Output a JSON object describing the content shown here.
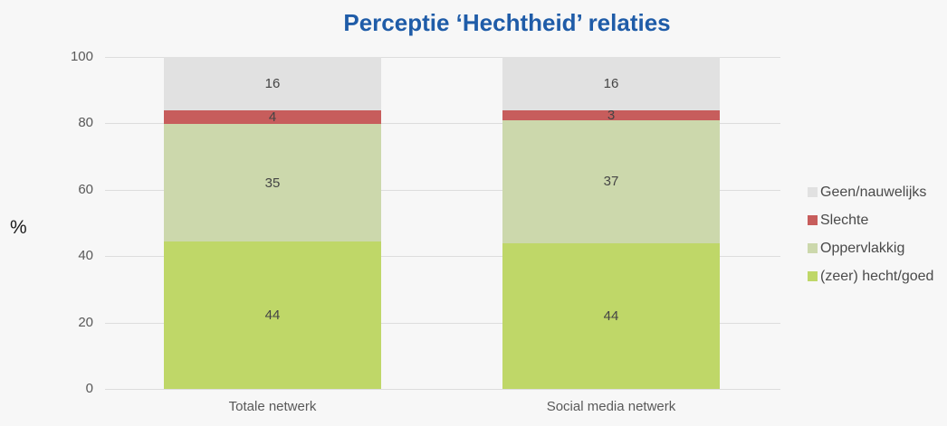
{
  "title": "Perceptie ‘Hechtheid’ relaties",
  "y_axis_label": "%",
  "chart_data": {
    "type": "bar",
    "stacked": true,
    "normalized_to_100": true,
    "title": "Perceptie ‘Hechtheid’ relaties",
    "xlabel": "",
    "ylabel": "%",
    "ylim": [
      0,
      100
    ],
    "yticks": [
      0,
      20,
      40,
      60,
      80,
      100
    ],
    "grid": true,
    "legend_position": "right",
    "categories": [
      "Totale netwerk",
      "Social media netwerk"
    ],
    "series": [
      {
        "name": "(zeer) hecht/goed",
        "color": "#bfd768",
        "values": [
          44,
          44
        ]
      },
      {
        "name": "Oppervlakkig",
        "color": "#ccd8ac",
        "values": [
          35,
          37
        ]
      },
      {
        "name": "Slechte",
        "color": "#c75d5c",
        "values": [
          4,
          3
        ]
      },
      {
        "name": "Geen/nauwelijks",
        "color": "#e1e1e1",
        "values": [
          16,
          16
        ]
      }
    ],
    "legend": [
      "Geen/nauwelijks",
      "Slechte",
      "Oppervlakkig",
      "(zeer) hecht/goed"
    ]
  },
  "colors": {
    "background": "#f7f7f7",
    "gridline": "#dddddd",
    "title_text": "#1f5ca8",
    "tick_text": "#595959",
    "value_text": "#454545"
  }
}
